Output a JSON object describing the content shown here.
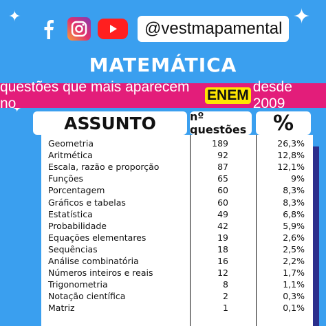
{
  "social": {
    "handle": "@vestmapamental",
    "icons": [
      "facebook-icon",
      "instagram-icon",
      "youtube-icon"
    ]
  },
  "title": "MATEMÁTICA",
  "banner": {
    "before": "questões que mais aparecem no",
    "highlight": "ENEM",
    "after": "desde 2009"
  },
  "headers": {
    "subject": "ASSUNTO",
    "count": "nº questões",
    "percent": "%"
  },
  "rows": [
    {
      "subject": "Geometria",
      "count": "189",
      "percent": "26,3%"
    },
    {
      "subject": "Aritmética",
      "count": "92",
      "percent": "12,8%"
    },
    {
      "subject": "Escala, razão e proporção",
      "count": "87",
      "percent": "12,1%"
    },
    {
      "subject": "Funções",
      "count": "65",
      "percent": "9%"
    },
    {
      "subject": "Porcentagem",
      "count": "60",
      "percent": "8,3%"
    },
    {
      "subject": "Gráficos e tabelas",
      "count": "60",
      "percent": "8,3%"
    },
    {
      "subject": "Estatística",
      "count": "49",
      "percent": "6,8%"
    },
    {
      "subject": "Probabilidade",
      "count": "42",
      "percent": "5,9%"
    },
    {
      "subject": "Equações elementares",
      "count": "19",
      "percent": "2,6%"
    },
    {
      "subject": "Sequências",
      "count": "18",
      "percent": "2,5%"
    },
    {
      "subject": "Análise combinatória",
      "count": "16",
      "percent": "2,2%"
    },
    {
      "subject": "Números inteiros e reais",
      "count": "12",
      "percent": "1,7%"
    },
    {
      "subject": "Trigonometria",
      "count": "8",
      "percent": "1,1%"
    },
    {
      "subject": "Notação científica",
      "count": "2",
      "percent": "0,3%"
    },
    {
      "subject": "Matriz",
      "count": "1",
      "percent": "0,1%"
    }
  ],
  "colors": {
    "background": "#3a9fef",
    "banner": "#e31d7a",
    "highlight": "#ffe600",
    "shadow": "#2b2e8c"
  }
}
